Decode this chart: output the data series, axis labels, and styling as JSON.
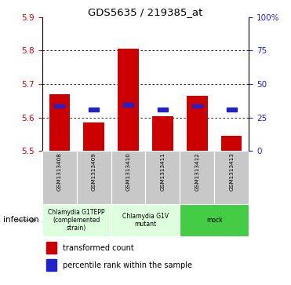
{
  "title": "GDS5635 / 219385_at",
  "samples": [
    "GSM1313408",
    "GSM1313409",
    "GSM1313410",
    "GSM1313411",
    "GSM1313412",
    "GSM1313413"
  ],
  "bar_bottoms": [
    5.5,
    5.5,
    5.5,
    5.5,
    5.5,
    5.5
  ],
  "bar_tops": [
    5.67,
    5.585,
    5.805,
    5.605,
    5.665,
    5.545
  ],
  "percentile_values": [
    5.634,
    5.624,
    5.638,
    5.624,
    5.634,
    5.624
  ],
  "ylim": [
    5.5,
    5.9
  ],
  "yticks_left": [
    5.5,
    5.6,
    5.7,
    5.8,
    5.9
  ],
  "bar_color": "#cc0000",
  "percentile_color": "#2222cc",
  "left_tick_color": "#cc0000",
  "right_tick_color": "#2222cc",
  "groups": [
    {
      "label": "Chlamydia G1TEPP\n(complemented\nstrain)",
      "start": 0,
      "end": 2,
      "color": "#ddffdd"
    },
    {
      "label": "Chlamydia G1V\nmutant",
      "start": 2,
      "end": 4,
      "color": "#ddffdd"
    },
    {
      "label": "mock",
      "start": 4,
      "end": 6,
      "color": "#44cc44"
    }
  ],
  "infection_label": "infection",
  "legend_bar_label": "transformed count",
  "legend_pct_label": "percentile rank within the sample",
  "figsize": [
    3.71,
    3.63
  ],
  "dpi": 100
}
